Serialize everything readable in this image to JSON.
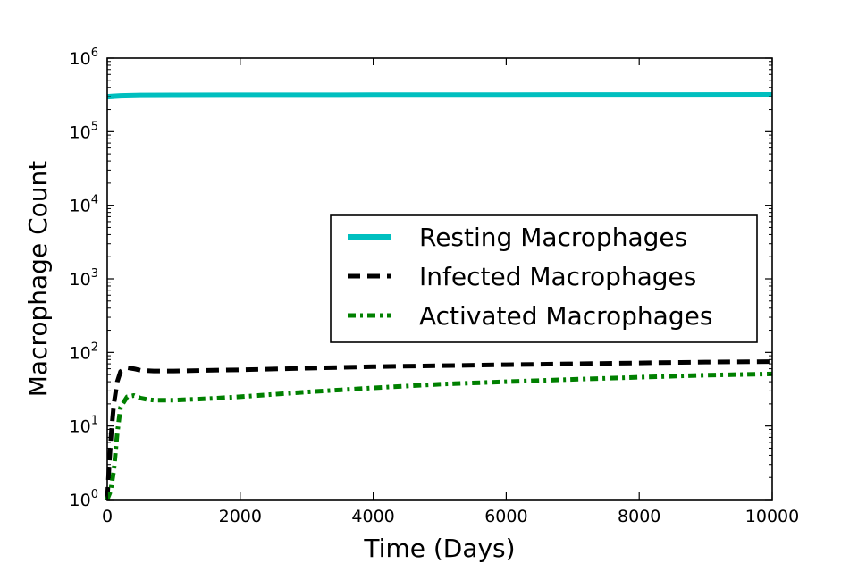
{
  "chart_data": {
    "type": "line",
    "title": "",
    "xlabel": "Time (Days)",
    "ylabel": "Macrophage Count",
    "xlim": [
      0,
      10000
    ],
    "ylim": [
      1,
      1000000
    ],
    "yscale": "log",
    "xticks": [
      0,
      2000,
      4000,
      6000,
      8000,
      10000
    ],
    "xtick_labels": [
      "0",
      "2000",
      "4000",
      "6000",
      "8000",
      "10000"
    ],
    "yticks": [
      {
        "value": 1,
        "base": "10",
        "exp": "0"
      },
      {
        "value": 10,
        "base": "10",
        "exp": "1"
      },
      {
        "value": 100,
        "base": "10",
        "exp": "2"
      },
      {
        "value": 1000,
        "base": "10",
        "exp": "3"
      },
      {
        "value": 10000,
        "base": "10",
        "exp": "4"
      },
      {
        "value": 100000,
        "base": "10",
        "exp": "5"
      },
      {
        "value": 1000000,
        "base": "10",
        "exp": "6"
      }
    ],
    "grid": false,
    "legend_position": "center-right",
    "series": [
      {
        "name": "Resting Macrophages",
        "color": "#00bfbf",
        "style": "solid",
        "x": [
          0,
          200,
          500,
          1000,
          2000,
          4000,
          6000,
          8000,
          10000
        ],
        "y": [
          300000,
          308000,
          312000,
          313000,
          314000,
          315000,
          316000,
          317000,
          318000
        ]
      },
      {
        "name": "Infected Macrophages",
        "color": "#000000",
        "style": "dashed",
        "x": [
          0,
          30,
          60,
          100,
          150,
          200,
          300,
          400,
          500,
          700,
          1000,
          1500,
          2000,
          3000,
          4000,
          5000,
          6000,
          7000,
          8000,
          9000,
          10000
        ],
        "y": [
          1,
          3,
          8,
          20,
          40,
          55,
          62,
          60,
          57,
          56,
          56,
          57,
          58,
          61,
          64,
          66,
          68,
          70,
          72,
          74,
          75
        ]
      },
      {
        "name": "Activated Macrophages",
        "color": "#008000",
        "style": "dashdot",
        "x": [
          0,
          50,
          100,
          150,
          200,
          300,
          400,
          500,
          600,
          700,
          1000,
          1500,
          2000,
          3000,
          4000,
          5000,
          6000,
          7000,
          8000,
          9000,
          10000
        ],
        "y": [
          1,
          1.3,
          2.5,
          8,
          18,
          25,
          26,
          24,
          23,
          22.5,
          22.5,
          23.5,
          25,
          29,
          33,
          37,
          40,
          43,
          46,
          49,
          51
        ]
      }
    ]
  }
}
